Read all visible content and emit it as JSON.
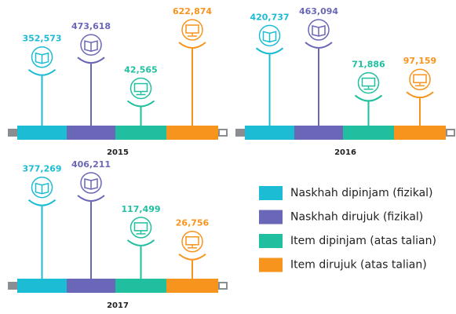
{
  "chart_data": [
    {
      "type": "lollipop",
      "title": "2015",
      "categories": [
        "Naskhah dipinjam (fizikal)",
        "Naskhah dirujuk (fizikal)",
        "Item dipinjam (atas talian)",
        "Item dirujuk (atas talian)"
      ],
      "values": [
        352573,
        473618,
        42565,
        622874
      ],
      "value_labels": [
        "352,573",
        "473,618",
        "42,565",
        "622,874"
      ],
      "colors": [
        "#1bbcd4",
        "#6a67b8",
        "#1fbf9f",
        "#f7941d"
      ]
    },
    {
      "type": "lollipop",
      "title": "2016",
      "categories": [
        "Naskhah dipinjam (fizikal)",
        "Naskhah dirujuk (fizikal)",
        "Item dipinjam (atas talian)",
        "Item dirujuk (atas talian)"
      ],
      "values": [
        420737,
        463094,
        71886,
        97159
      ],
      "value_labels": [
        "420,737",
        "463,094",
        "71,886",
        "97,159"
      ],
      "colors": [
        "#1bbcd4",
        "#6a67b8",
        "#1fbf9f",
        "#f7941d"
      ]
    },
    {
      "type": "lollipop",
      "title": "2017",
      "categories": [
        "Naskhah dipinjam (fizikal)",
        "Naskhah dirujuk (fizikal)",
        "Item dipinjam (atas talian)",
        "Item dirujuk (atas talian)"
      ],
      "values": [
        377269,
        406211,
        117499,
        26756
      ],
      "value_labels": [
        "377,269",
        "406,211",
        "117,499",
        "26,756"
      ],
      "colors": [
        "#1bbcd4",
        "#6a67b8",
        "#1fbf9f",
        "#f7941d"
      ]
    }
  ]
}
